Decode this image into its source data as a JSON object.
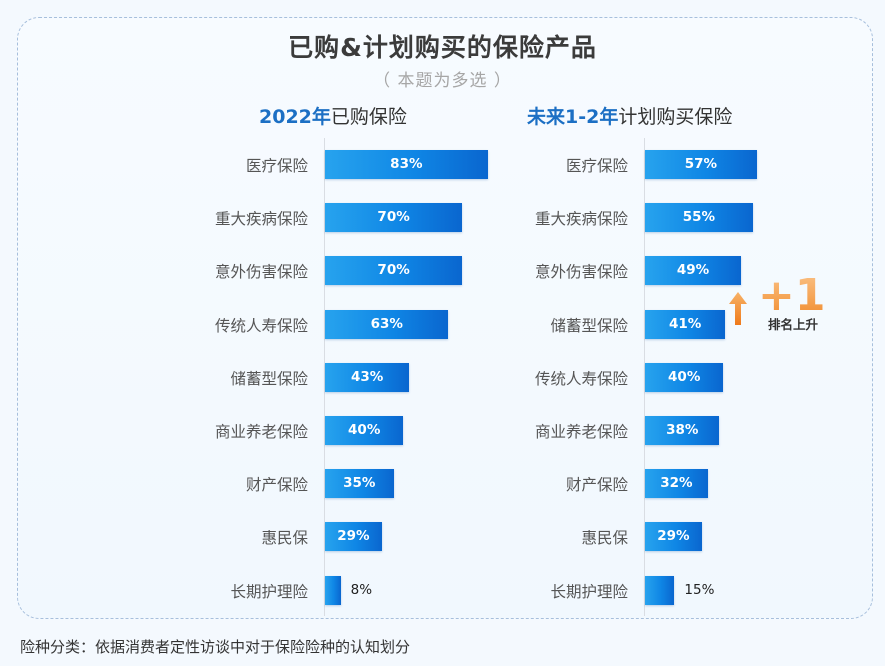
{
  "title": "已购&计划购买的保险产品",
  "subtitle": "（ 本题为多选 ）",
  "footnote": "险种分类：依据消费者定性访谈中对于保险险种的认知划分",
  "rank_badge": {
    "number": "+1",
    "text": "排名上升",
    "color": "#f08a2a"
  },
  "colors": {
    "bar": "#0f86e5",
    "heading_accent": "#1c6fc4"
  },
  "chart_data": [
    {
      "type": "bar",
      "orientation": "horizontal",
      "title_accent": "2022年",
      "title_rest": "已购保险",
      "categories": [
        "医疗保险",
        "重大疾病保险",
        "意外伤害保险",
        "传统人寿保险",
        "储蓄型保险",
        "商业养老保险",
        "财产保险",
        "惠民保",
        "长期护理险"
      ],
      "values": [
        83,
        70,
        70,
        63,
        43,
        40,
        35,
        29,
        8
      ],
      "labels": [
        "83%",
        "70%",
        "70%",
        "63%",
        "43%",
        "40%",
        "35%",
        "29%",
        "8%"
      ],
      "unit": "%",
      "xlim": [
        0,
        100
      ]
    },
    {
      "type": "bar",
      "orientation": "horizontal",
      "title_accent": "未来1-2年",
      "title_rest": "计划购买保险",
      "categories": [
        "医疗保险",
        "重大疾病保险",
        "意外伤害保险",
        "储蓄型保险",
        "传统人寿保险",
        "商业养老保险",
        "财产保险",
        "惠民保",
        "长期护理险"
      ],
      "values": [
        57,
        55,
        49,
        41,
        40,
        38,
        32,
        29,
        15
      ],
      "labels": [
        "57%",
        "55%",
        "49%",
        "41%",
        "40%",
        "38%",
        "32%",
        "29%",
        "15%"
      ],
      "unit": "%",
      "xlim": [
        0,
        100
      ]
    }
  ]
}
